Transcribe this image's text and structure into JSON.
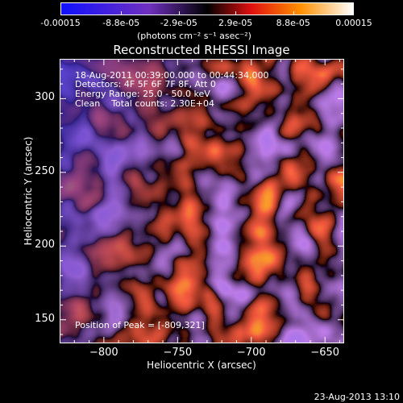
{
  "colorbar": {
    "ticks": [
      "-0.00015",
      "-8.8e-05",
      "-2.9e-05",
      "2.9e-05",
      "8.8e-05",
      "0.00015"
    ],
    "tick_values": [
      -0.00015,
      -8.8e-05,
      -2.9e-05,
      2.9e-05,
      8.8e-05,
      0.00015
    ],
    "units": "(photons cm⁻² s⁻¹ asec⁻²)"
  },
  "chart_data": {
    "type": "heatmap",
    "title": "Reconstructed RHESSI Image",
    "xlabel": "Heliocentric X (arcsec)",
    "ylabel": "Heliocentric Y (arcsec)",
    "xlim": [
      -830,
      -637
    ],
    "ylim": [
      134,
      327
    ],
    "xticks": [
      -800,
      -750,
      -700,
      -650
    ],
    "yticks": [
      150,
      200,
      250,
      300
    ],
    "xtick_labels": [
      "−800",
      "−750",
      "−700",
      "−650"
    ],
    "ytick_labels": [
      "150",
      "200",
      "250",
      "300"
    ],
    "annotations": [
      "18-Aug-2011 00:39:00.000 to 00:44:34.000",
      "Detectors: 4F 5F 6F 7F 8F, Att 0",
      "Energy Range: 25.0 - 50.0 keV",
      "Clean    Total counts: 2.30E+04"
    ],
    "peak_text": "Position of Peak = [-809,321]",
    "peak_position": [
      -809,
      321
    ],
    "colors": [
      "#1c1cff",
      "#6a35c8",
      "#000000",
      "#d41010",
      "#ff8c00",
      "#ffff80"
    ]
  },
  "timestamp": "23-Aug-2013 13:10"
}
